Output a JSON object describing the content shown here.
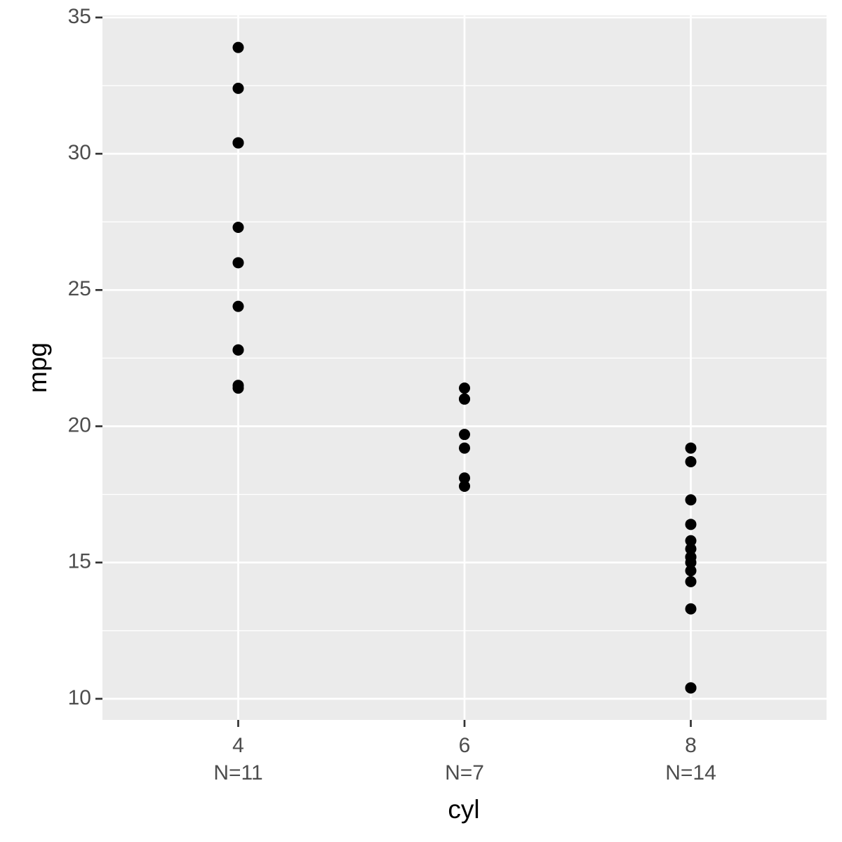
{
  "chart_data": {
    "type": "scatter",
    "x_label": "cyl",
    "y_label": "mpg",
    "x": [
      4,
      4,
      4,
      4,
      4,
      4,
      4,
      4,
      4,
      4,
      4,
      6,
      6,
      6,
      6,
      6,
      6,
      6,
      8,
      8,
      8,
      8,
      8,
      8,
      8,
      8,
      8,
      8,
      8,
      8,
      8,
      8
    ],
    "y": [
      22.8,
      24.4,
      22.8,
      32.4,
      30.4,
      33.9,
      21.5,
      27.3,
      26.0,
      30.4,
      21.4,
      21.0,
      21.0,
      21.4,
      18.1,
      19.2,
      17.8,
      19.7,
      18.7,
      14.3,
      16.4,
      17.3,
      15.2,
      10.4,
      10.4,
      14.7,
      15.5,
      15.2,
      13.3,
      19.2,
      15.8,
      15.0
    ],
    "color": "#000000",
    "xlim": [
      2.8,
      9.2
    ],
    "xticks": [
      4,
      6,
      8
    ],
    "x_tick_counts": [
      "N=11",
      "N=7",
      "N=14"
    ],
    "ylim": [
      9.225,
      35.075
    ],
    "yticks": [
      10,
      15,
      20,
      25,
      30,
      35
    ],
    "minor_yticks": [
      12.5,
      17.5,
      22.5,
      27.5,
      32.5
    ],
    "grid": true
  }
}
